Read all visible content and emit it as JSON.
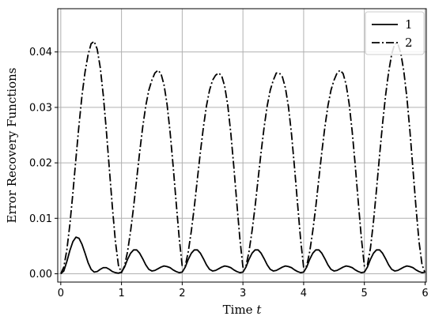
{
  "chart_data": {
    "type": "line",
    "xlabel": "Time t",
    "ylabel": "Error Recovery Functions",
    "xlim": [
      -0.05,
      6.02
    ],
    "ylim": [
      -0.0015,
      0.0478
    ],
    "xticks": [
      0,
      1,
      2,
      3,
      4,
      5,
      6
    ],
    "yticks": [
      0.0,
      0.01,
      0.02,
      0.03,
      0.04
    ],
    "ytick_labels": [
      "0.00",
      "0.01",
      "0.02",
      "0.03",
      "0.04"
    ],
    "grid": true,
    "legend_position": "top-right",
    "series": [
      {
        "name": "1",
        "style": "solid",
        "color": "#000000",
        "x": [
          0.0,
          0.05,
          0.1,
          0.15,
          0.2,
          0.25,
          0.3,
          0.35,
          0.4,
          0.45,
          0.5,
          0.55,
          0.6,
          0.65,
          0.7,
          0.75,
          0.8,
          0.85,
          0.9,
          0.95,
          1.0,
          1.05,
          1.1,
          1.15,
          1.2,
          1.25,
          1.3,
          1.35,
          1.4,
          1.45,
          1.5,
          1.55,
          1.6,
          1.65,
          1.7,
          1.75,
          1.8,
          1.85,
          1.9,
          1.95,
          2.0,
          2.05,
          2.1,
          2.15,
          2.2,
          2.25,
          2.3,
          2.35,
          2.4,
          2.45,
          2.5,
          2.55,
          2.6,
          2.65,
          2.7,
          2.75,
          2.8,
          2.85,
          2.9,
          2.95,
          3.0,
          3.05,
          3.1,
          3.15,
          3.2,
          3.25,
          3.3,
          3.35,
          3.4,
          3.45,
          3.5,
          3.55,
          3.6,
          3.65,
          3.7,
          3.75,
          3.8,
          3.85,
          3.9,
          3.95,
          4.0,
          4.05,
          4.1,
          4.15,
          4.2,
          4.25,
          4.3,
          4.35,
          4.4,
          4.45,
          4.5,
          4.55,
          4.6,
          4.65,
          4.7,
          4.75,
          4.8,
          4.85,
          4.9,
          4.95,
          5.0,
          5.05,
          5.1,
          5.15,
          5.2,
          5.25,
          5.3,
          5.35,
          5.4,
          5.45,
          5.5,
          5.55,
          5.6,
          5.65,
          5.7,
          5.75,
          5.8,
          5.85,
          5.9,
          5.95,
          6.0
        ],
        "y": [
          0.0,
          0.0005,
          0.0022,
          0.0042,
          0.0058,
          0.0066,
          0.0064,
          0.0053,
          0.0037,
          0.002,
          0.0008,
          0.0003,
          0.0004,
          0.0008,
          0.0011,
          0.0011,
          0.0008,
          0.0004,
          0.0002,
          0.0001,
          0.0003,
          0.0012,
          0.0026,
          0.0037,
          0.0043,
          0.0043,
          0.0037,
          0.0027,
          0.0016,
          0.0008,
          0.0005,
          0.0006,
          0.0009,
          0.0012,
          0.0014,
          0.0013,
          0.0011,
          0.0007,
          0.0004,
          0.0002,
          0.0003,
          0.0012,
          0.0026,
          0.0037,
          0.0043,
          0.0043,
          0.0037,
          0.0027,
          0.0016,
          0.0008,
          0.0005,
          0.0006,
          0.0009,
          0.0012,
          0.0014,
          0.0013,
          0.0011,
          0.0007,
          0.0004,
          0.0002,
          0.0003,
          0.0012,
          0.0026,
          0.0037,
          0.0043,
          0.0043,
          0.0037,
          0.0027,
          0.0016,
          0.0008,
          0.0005,
          0.0006,
          0.0009,
          0.0012,
          0.0014,
          0.0013,
          0.0011,
          0.0007,
          0.0004,
          0.0002,
          0.0003,
          0.0012,
          0.0026,
          0.0037,
          0.0043,
          0.0043,
          0.0037,
          0.0027,
          0.0016,
          0.0008,
          0.0005,
          0.0006,
          0.0009,
          0.0012,
          0.0014,
          0.0013,
          0.0011,
          0.0007,
          0.0004,
          0.0002,
          0.0003,
          0.0012,
          0.0026,
          0.0037,
          0.0043,
          0.0043,
          0.0037,
          0.0027,
          0.0016,
          0.0008,
          0.0005,
          0.0006,
          0.0009,
          0.0012,
          0.0014,
          0.0013,
          0.0011,
          0.0007,
          0.0004,
          0.0002,
          0.0003
        ]
      },
      {
        "name": "2",
        "style": "dashdot",
        "color": "#000000",
        "x": [
          0.0,
          0.05,
          0.1,
          0.15,
          0.2,
          0.25,
          0.3,
          0.35,
          0.4,
          0.45,
          0.5,
          0.55,
          0.6,
          0.65,
          0.7,
          0.75,
          0.8,
          0.85,
          0.9,
          0.95,
          1.0,
          1.05,
          1.1,
          1.15,
          1.2,
          1.25,
          1.3,
          1.35,
          1.4,
          1.45,
          1.5,
          1.55,
          1.6,
          1.65,
          1.7,
          1.75,
          1.8,
          1.85,
          1.9,
          1.95,
          2.0,
          2.05,
          2.1,
          2.15,
          2.2,
          2.25,
          2.3,
          2.35,
          2.4,
          2.45,
          2.5,
          2.55,
          2.6,
          2.65,
          2.7,
          2.75,
          2.8,
          2.85,
          2.9,
          2.95,
          3.0,
          3.05,
          3.1,
          3.15,
          3.2,
          3.25,
          3.3,
          3.35,
          3.4,
          3.45,
          3.5,
          3.55,
          3.6,
          3.65,
          3.7,
          3.75,
          3.8,
          3.85,
          3.9,
          3.95,
          4.0,
          4.05,
          4.1,
          4.15,
          4.2,
          4.25,
          4.3,
          4.35,
          4.4,
          4.45,
          4.5,
          4.55,
          4.6,
          4.65,
          4.7,
          4.75,
          4.8,
          4.85,
          4.9,
          4.95,
          5.0,
          5.05,
          5.1,
          5.15,
          5.2,
          5.25,
          5.3,
          5.35,
          5.4,
          5.45,
          5.5,
          5.55,
          5.6,
          5.65,
          5.7,
          5.75,
          5.8,
          5.85,
          5.9,
          5.95,
          6.0
        ],
        "y": [
          0.0,
          0.0012,
          0.0043,
          0.0089,
          0.0146,
          0.0208,
          0.0268,
          0.0322,
          0.0364,
          0.0395,
          0.0415,
          0.0419,
          0.0405,
          0.0372,
          0.0322,
          0.0259,
          0.0189,
          0.012,
          0.0058,
          0.0015,
          0.0002,
          0.0014,
          0.004,
          0.0077,
          0.0121,
          0.0171,
          0.022,
          0.0265,
          0.0303,
          0.0331,
          0.0349,
          0.0362,
          0.0367,
          0.0361,
          0.0341,
          0.0306,
          0.0256,
          0.0195,
          0.0129,
          0.0065,
          0.0014,
          0.0014,
          0.004,
          0.0077,
          0.0121,
          0.0171,
          0.022,
          0.0265,
          0.0303,
          0.0331,
          0.0349,
          0.0358,
          0.0362,
          0.0357,
          0.0338,
          0.0304,
          0.0254,
          0.0193,
          0.0127,
          0.0063,
          0.0012,
          0.0014,
          0.004,
          0.0077,
          0.0121,
          0.0171,
          0.022,
          0.0265,
          0.0303,
          0.0331,
          0.0349,
          0.0362,
          0.0362,
          0.0355,
          0.0335,
          0.0301,
          0.0252,
          0.0191,
          0.0126,
          0.0062,
          0.0011,
          0.0014,
          0.004,
          0.0077,
          0.0121,
          0.0171,
          0.022,
          0.0265,
          0.0303,
          0.0331,
          0.0349,
          0.0362,
          0.0367,
          0.0361,
          0.0341,
          0.0306,
          0.0256,
          0.0195,
          0.0129,
          0.0065,
          0.0014,
          0.0016,
          0.0046,
          0.0094,
          0.0152,
          0.0213,
          0.0271,
          0.0322,
          0.0364,
          0.0396,
          0.0415,
          0.0415,
          0.0398,
          0.0365,
          0.0318,
          0.0258,
          0.0189,
          0.012,
          0.0058,
          0.0016,
          0.0002
        ]
      }
    ]
  }
}
